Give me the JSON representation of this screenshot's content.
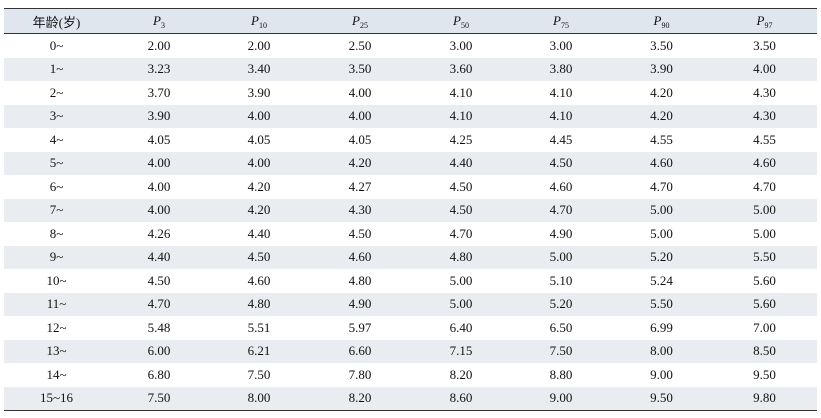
{
  "table": {
    "header": [
      "年龄(岁)",
      {
        "base": "P",
        "sub": "3"
      },
      {
        "base": "P",
        "sub": "10"
      },
      {
        "base": "P",
        "sub": "25"
      },
      {
        "base": "P",
        "sub": "50"
      },
      {
        "base": "P",
        "sub": "75"
      },
      {
        "base": "P",
        "sub": "90"
      },
      {
        "base": "P",
        "sub": "97"
      }
    ],
    "rows": [
      [
        "0~",
        "2.00",
        "2.00",
        "2.50",
        "3.00",
        "3.00",
        "3.50",
        "3.50"
      ],
      [
        "1~",
        "3.23",
        "3.40",
        "3.50",
        "3.60",
        "3.80",
        "3.90",
        "4.00"
      ],
      [
        "2~",
        "3.70",
        "3.90",
        "4.00",
        "4.10",
        "4.10",
        "4.20",
        "4.30"
      ],
      [
        "3~",
        "3.90",
        "4.00",
        "4.00",
        "4.10",
        "4.10",
        "4.20",
        "4.30"
      ],
      [
        "4~",
        "4.05",
        "4.05",
        "4.05",
        "4.25",
        "4.45",
        "4.55",
        "4.55"
      ],
      [
        "5~",
        "4.00",
        "4.00",
        "4.20",
        "4.40",
        "4.50",
        "4.60",
        "4.60"
      ],
      [
        "6~",
        "4.00",
        "4.20",
        "4.27",
        "4.50",
        "4.60",
        "4.70",
        "4.70"
      ],
      [
        "7~",
        "4.00",
        "4.20",
        "4.30",
        "4.50",
        "4.70",
        "5.00",
        "5.00"
      ],
      [
        "8~",
        "4.26",
        "4.40",
        "4.50",
        "4.70",
        "4.90",
        "5.00",
        "5.00"
      ],
      [
        "9~",
        "4.40",
        "4.50",
        "4.60",
        "4.80",
        "5.00",
        "5.20",
        "5.50"
      ],
      [
        "10~",
        "4.50",
        "4.60",
        "4.80",
        "5.00",
        "5.10",
        "5.24",
        "5.60"
      ],
      [
        "11~",
        "4.70",
        "4.80",
        "4.90",
        "5.00",
        "5.20",
        "5.50",
        "5.60"
      ],
      [
        "12~",
        "5.48",
        "5.51",
        "5.97",
        "6.40",
        "6.50",
        "6.99",
        "7.00"
      ],
      [
        "13~",
        "6.00",
        "6.21",
        "6.60",
        "7.15",
        "7.50",
        "8.00",
        "8.50"
      ],
      [
        "14~",
        "6.80",
        "7.50",
        "7.80",
        "8.20",
        "8.80",
        "9.00",
        "9.50"
      ],
      [
        "15~16",
        "7.50",
        "8.00",
        "8.20",
        "8.60",
        "9.00",
        "9.50",
        "9.80"
      ]
    ]
  }
}
